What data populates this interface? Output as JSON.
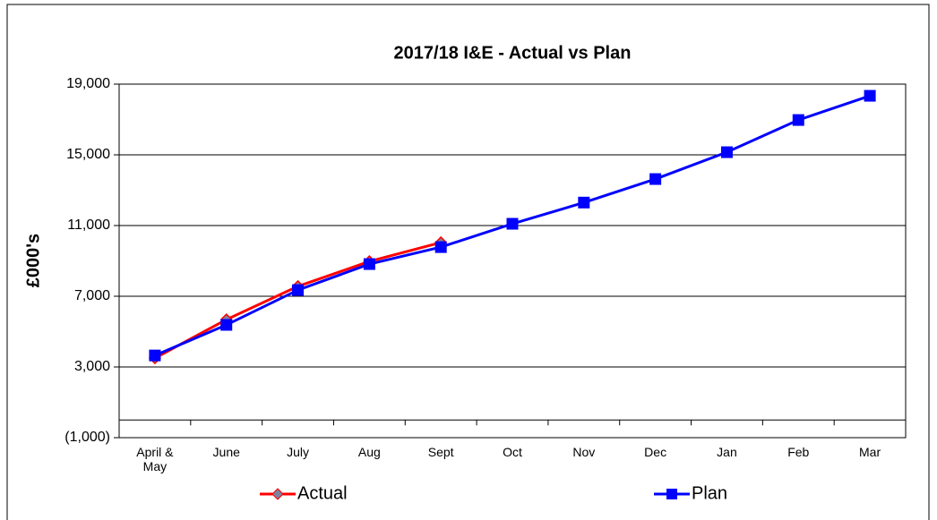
{
  "chart_data": {
    "type": "line",
    "title": "2017/18 I&E - Actual vs Plan",
    "y_label": "£000's",
    "categories": [
      "April & May",
      "June",
      "July",
      "Aug",
      "Sept",
      "Oct",
      "Nov",
      "Dec",
      "Jan",
      "Feb",
      "Mar"
    ],
    "series": [
      {
        "name": "Actual",
        "color": "#ff0000",
        "marker_color": "#8080a0",
        "marker": "diamond",
        "values": [
          3500,
          5680,
          7560,
          8970,
          10040,
          null,
          null,
          null,
          null,
          null,
          null
        ]
      },
      {
        "name": "Plan",
        "color": "#0000ff",
        "marker_color": "#0000ff",
        "marker": "square",
        "values": [
          3650,
          5380,
          7350,
          8820,
          9780,
          11100,
          12300,
          13630,
          15150,
          16970,
          18340
        ]
      }
    ],
    "ylim": [
      -1000,
      19000
    ],
    "yticks": [
      {
        "value": -1000,
        "label": "(1,000)"
      },
      {
        "value": 3000,
        "label": "3,000"
      },
      {
        "value": 7000,
        "label": "7,000"
      },
      {
        "value": 11000,
        "label": "11,000"
      },
      {
        "value": 15000,
        "label": "15,000"
      },
      {
        "value": 19000,
        "label": "19,000"
      }
    ],
    "grid": true,
    "legend": "bottom"
  }
}
